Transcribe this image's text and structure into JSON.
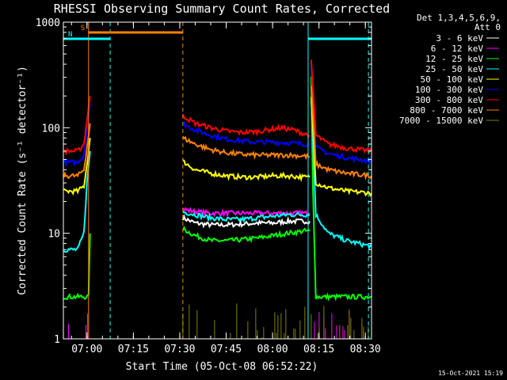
{
  "chart_data": {
    "type": "line",
    "title": "RHESSI Observing Summary Count Rates, Corrected",
    "xlabel": "Start Time (05-Oct-08 06:52:22)",
    "ylabel": "Corrected Count Rate (s⁻¹ detector⁻¹)",
    "y_scale": "log",
    "ylim": [
      1,
      1000
    ],
    "xlim": [
      "06:52:22",
      "08:32:00"
    ],
    "x_ticks": [
      "07:00",
      "07:15",
      "07:30",
      "07:45",
      "08:00",
      "08:15",
      "08:30"
    ],
    "y_ticks": [
      {
        "value": 1,
        "label": "1"
      },
      {
        "value": 10,
        "label": "10"
      },
      {
        "value": 100,
        "label": "100"
      },
      {
        "value": 1000,
        "label": "1000"
      }
    ],
    "legend_header": [
      "Det 1,3,4,5,6,9,",
      "Att 0"
    ],
    "legend_position": "right",
    "footer_date": "15-Oct-2021 15:19",
    "series": [
      {
        "name": "3 - 6 keV",
        "color": "#ffffff",
        "segments": [
          {
            "x": [
              "07:31:00",
              "07:35:00",
              "07:40:00",
              "07:45:00",
              "07:50:00",
              "07:55:00",
              "08:00:00",
              "08:05:00",
              "08:10:00",
              "08:12:00"
            ],
            "y": [
              14,
              12.5,
              12,
              12,
              12.2,
              12.5,
              12.5,
              13,
              13,
              13
            ]
          }
        ]
      },
      {
        "name": "6 - 12 keV",
        "color": "#ff00ff",
        "segments": [
          {
            "x": [
              "07:31:00",
              "07:35:00",
              "07:40:00",
              "07:45:00",
              "07:50:00",
              "07:55:00",
              "08:00:00",
              "08:05:00",
              "08:10:00",
              "08:12:00"
            ],
            "y": [
              17,
              16,
              15.5,
              15.5,
              15.5,
              15.5,
              15.5,
              15.5,
              15.5,
              15.5
            ]
          }
        ]
      },
      {
        "name": "12 - 25 keV",
        "color": "#00ff00",
        "segments": [
          {
            "x": [
              "06:52:30",
              "06:58:30",
              "07:00:30",
              "07:01:00"
            ],
            "y": [
              2.5,
              2.5,
              2.5,
              10
            ]
          },
          {
            "x": [
              "07:31:00",
              "07:35:00",
              "07:40:00",
              "07:45:00",
              "07:50:00",
              "07:55:00",
              "08:00:00",
              "08:05:00",
              "08:10:00",
              "08:12:00"
            ],
            "y": [
              11,
              9.5,
              8.5,
              8.5,
              8.7,
              9,
              9.5,
              10,
              10.5,
              10.5
            ]
          },
          {
            "x": [
              "08:12:30",
              "08:13:00",
              "08:14:00",
              "08:20:00",
              "08:32:00"
            ],
            "y": [
              300,
              30,
              2.5,
              2.5,
              2.5
            ]
          }
        ]
      },
      {
        "name": "25 - 50 keV",
        "color": "#00ffff",
        "segments": [
          {
            "x": [
              "06:52:30",
              "06:57:00",
              "06:59:00",
              "07:00:00",
              "07:01:00"
            ],
            "y": [
              7,
              7,
              10,
              30,
              60
            ]
          },
          {
            "x": [
              "07:31:00",
              "07:35:00",
              "07:40:00",
              "07:45:00",
              "07:50:00",
              "07:55:00",
              "08:00:00",
              "08:05:00",
              "08:10:00",
              "08:12:00"
            ],
            "y": [
              16,
              15,
              14,
              13.5,
              13.5,
              14,
              14.5,
              15,
              15,
              15
            ]
          },
          {
            "x": [
              "08:12:30",
              "08:14:00",
              "08:18:00",
              "08:24:00",
              "08:32:00"
            ],
            "y": [
              200,
              15,
              10,
              8.5,
              7.5
            ]
          }
        ]
      },
      {
        "name": "50 - 100 keV",
        "color": "#ffff00",
        "segments": [
          {
            "x": [
              "06:52:30",
              "06:57:00",
              "06:59:00",
              "07:00:00",
              "07:01:00"
            ],
            "y": [
              25,
              25,
              28,
              45,
              80
            ]
          },
          {
            "x": [
              "07:31:00",
              "07:35:00",
              "07:40:00",
              "07:45:00",
              "07:50:00",
              "07:55:00",
              "08:00:00",
              "08:05:00",
              "08:10:00",
              "08:12:00"
            ],
            "y": [
              48,
              40,
              37,
              35,
              34,
              34,
              35,
              35,
              34,
              34
            ]
          },
          {
            "x": [
              "08:12:30",
              "08:14:00",
              "08:18:00",
              "08:24:00",
              "08:32:00"
            ],
            "y": [
              200,
              30,
              27,
              25,
              24
            ]
          }
        ]
      },
      {
        "name": "100 - 300 keV",
        "color": "#0000ff",
        "segments": [
          {
            "x": [
              "06:52:30",
              "06:57:00",
              "06:59:00",
              "07:00:00",
              "07:01:00"
            ],
            "y": [
              47,
              47,
              55,
              100,
              170
            ]
          },
          {
            "x": [
              "07:31:00",
              "07:35:00",
              "07:40:00",
              "07:45:00",
              "07:50:00",
              "07:55:00",
              "08:00:00",
              "08:05:00",
              "08:10:00",
              "08:12:00"
            ],
            "y": [
              110,
              95,
              85,
              78,
              75,
              73,
              73,
              72,
              70,
              70
            ]
          },
          {
            "x": [
              "08:12:30",
              "08:14:00",
              "08:18:00",
              "08:24:00",
              "08:32:00"
            ],
            "y": [
              400,
              65,
              57,
              52,
              48
            ]
          }
        ]
      },
      {
        "name": "300 - 800 keV",
        "color": "#ff0000",
        "segments": [
          {
            "x": [
              "06:52:30",
              "06:57:00",
              "06:59:00",
              "07:00:00",
              "07:01:00"
            ],
            "y": [
              60,
              60,
              70,
              120,
              200
            ]
          },
          {
            "x": [
              "07:31:00",
              "07:35:00",
              "07:40:00",
              "07:45:00",
              "07:50:00",
              "07:55:00",
              "08:00:00",
              "08:03:00",
              "08:07:00",
              "08:10:00",
              "08:12:00"
            ],
            "y": [
              130,
              110,
              100,
              93,
              90,
              92,
              97,
              100,
              95,
              88,
              85
            ]
          },
          {
            "x": [
              "08:12:30",
              "08:14:00",
              "08:18:00",
              "08:24:00",
              "08:32:00"
            ],
            "y": [
              420,
              85,
              70,
              64,
              60
            ]
          }
        ]
      },
      {
        "name": "800 - 7000 keV",
        "color": "#ff8000",
        "segments": [
          {
            "x": [
              "06:52:30",
              "06:57:00",
              "06:59:00",
              "07:00:00",
              "07:01:00"
            ],
            "y": [
              35,
              35,
              40,
              65,
              110
            ]
          },
          {
            "x": [
              "07:31:00",
              "07:35:00",
              "07:40:00",
              "07:45:00",
              "07:50:00",
              "07:55:00",
              "08:00:00",
              "08:05:00",
              "08:10:00",
              "08:12:00"
            ],
            "y": [
              80,
              70,
              62,
              58,
              56,
              55,
              55,
              55,
              54,
              53
            ]
          },
          {
            "x": [
              "08:12:30",
              "08:14:00",
              "08:18:00",
              "08:24:00",
              "08:32:00"
            ],
            "y": [
              250,
              45,
              40,
              37,
              35
            ]
          }
        ]
      },
      {
        "name": "7000 - 15000 keV",
        "color": "#808000",
        "segments": []
      }
    ],
    "flags": [
      {
        "label": "S",
        "color": "#ff8000",
        "from": "07:00:30",
        "to": "07:31:00"
      },
      {
        "label": "N",
        "color": "#00ffff",
        "from": "06:52:22",
        "to": "07:07:30"
      },
      {
        "label": "",
        "color": "#00ffff",
        "from": "08:11:30",
        "to": "08:32:00"
      }
    ],
    "boundaries": [
      {
        "time": "07:00:30",
        "color": "#ff8000",
        "style": "solid"
      },
      {
        "time": "07:07:30",
        "color": "#00ffff",
        "style": "dashed"
      },
      {
        "time": "07:31:00",
        "color": "#ff8000",
        "style": "dashed"
      },
      {
        "time": "08:11:30",
        "color": "#00ffff",
        "style": "solid"
      },
      {
        "time": "08:31:00",
        "color": "#00ffff",
        "style": "dashed"
      }
    ]
  }
}
